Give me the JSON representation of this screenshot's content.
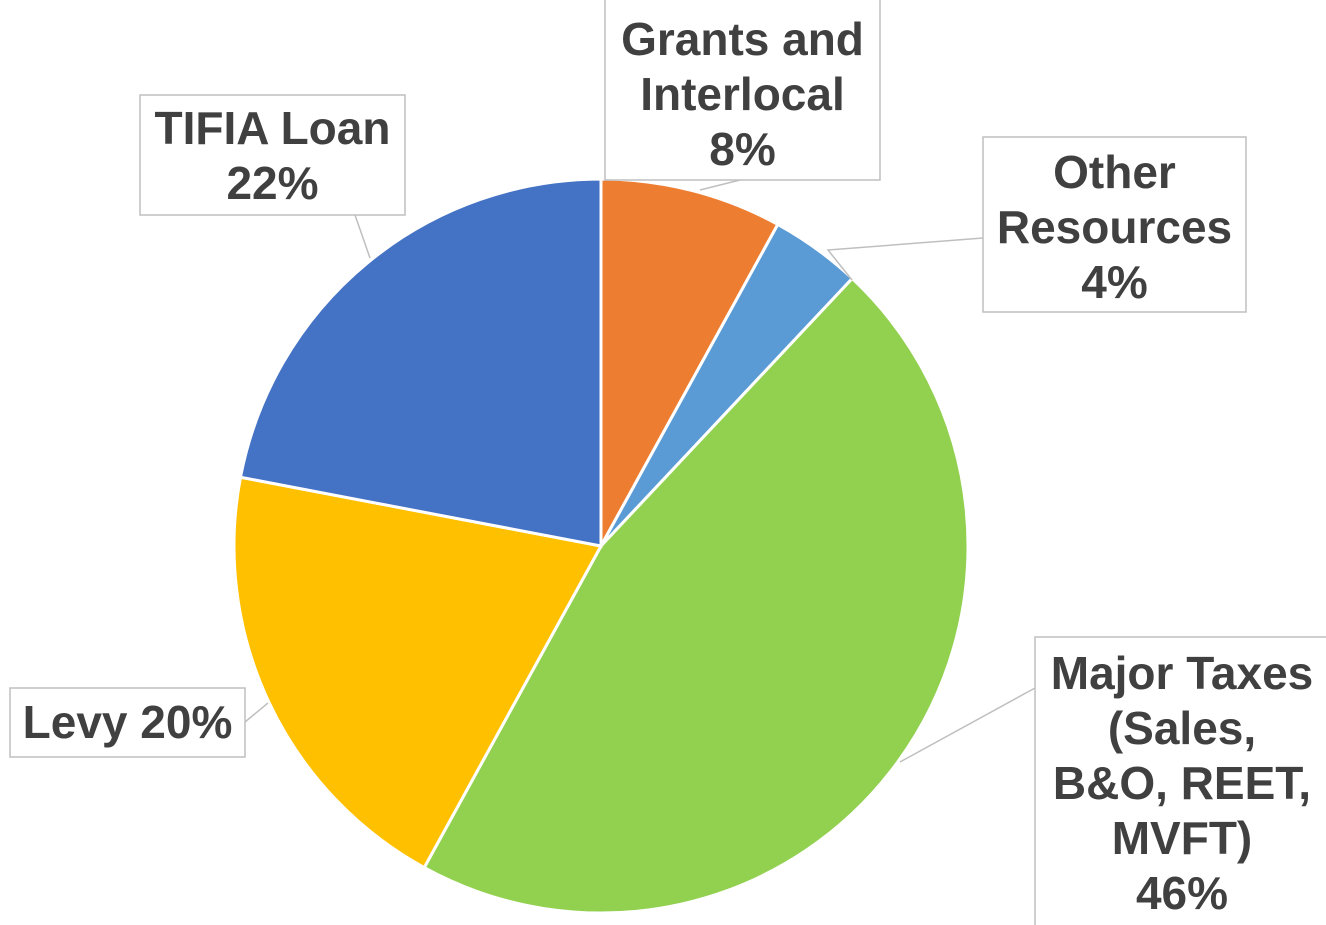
{
  "chart_data": {
    "type": "pie",
    "categories": [
      "Grants and Interlocal",
      "Other Resources",
      "Major Taxes (Sales, B&O, REET, MVFT)",
      "Levy",
      "TIFIA Loan"
    ],
    "values": [
      8,
      4,
      46,
      20,
      22
    ],
    "value_labels": [
      "8%",
      "4%",
      "46%",
      "20%",
      "22%"
    ],
    "colors": [
      "#ed7d31",
      "#5b9bd5",
      "#92d050",
      "#ffc000",
      "#4472c4"
    ]
  }
}
